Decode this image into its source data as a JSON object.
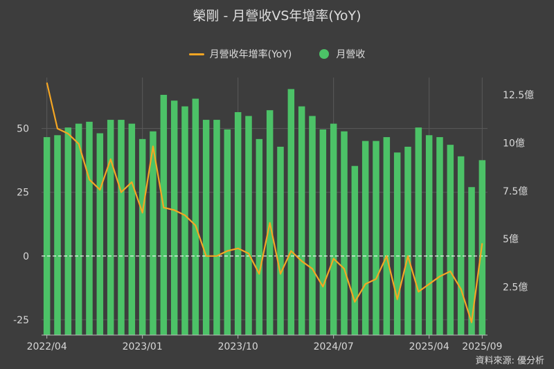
{
  "title": "榮剛 - 月營收VS年增率(YoY)",
  "legend": {
    "line_label": "月營收年增率(YoY)",
    "bar_label": "月營收"
  },
  "source": "資料來源: 優分析",
  "colors": {
    "background": "#3d3d3d",
    "bar": "#4cc267",
    "line": "#f5a623",
    "zero_line": "#ffffff",
    "grid": "#5a5a5a"
  },
  "chart_data": {
    "type": "bar+line",
    "categories": [
      "2022/04",
      "2022/05",
      "2022/06",
      "2022/07",
      "2022/08",
      "2022/09",
      "2022/10",
      "2022/11",
      "2022/12",
      "2023/01",
      "2023/02",
      "2023/03",
      "2023/04",
      "2023/05",
      "2023/06",
      "2023/07",
      "2023/08",
      "2023/09",
      "2023/10",
      "2023/11",
      "2023/12",
      "2024/01",
      "2024/02",
      "2024/03",
      "2024/04",
      "2024/05",
      "2024/06",
      "2024/07",
      "2024/08",
      "2024/09",
      "2024/10",
      "2024/11",
      "2024/12",
      "2025/01",
      "2025/02",
      "2025/03",
      "2025/04",
      "2025/05",
      "2025/06",
      "2025/07",
      "2025/08",
      "2025/09"
    ],
    "x_tick_labels": [
      "2022/04",
      "2023/01",
      "2023/10",
      "2024/07",
      "2025/04",
      "2025/09"
    ],
    "series": [
      {
        "name": "月營收",
        "type": "bar",
        "axis": "right",
        "unit": "億",
        "values": [
          10.3,
          10.4,
          10.8,
          11.0,
          11.1,
          10.5,
          11.2,
          11.2,
          11.0,
          10.2,
          10.6,
          12.5,
          12.2,
          11.9,
          12.3,
          11.2,
          11.2,
          10.7,
          11.6,
          11.4,
          10.2,
          11.7,
          9.8,
          12.8,
          11.9,
          11.4,
          10.7,
          11.0,
          10.6,
          8.8,
          10.1,
          10.1,
          10.3,
          9.5,
          9.8,
          10.8,
          10.4,
          10.3,
          9.9,
          9.3,
          7.7,
          9.1
        ]
      },
      {
        "name": "月營收年增率(YoY)",
        "type": "line",
        "axis": "left",
        "values": [
          68,
          50,
          48,
          44,
          30,
          26,
          38,
          25,
          29,
          17,
          43,
          19,
          18,
          16,
          12,
          0,
          0,
          2,
          3,
          1,
          -7,
          13,
          -7,
          2,
          -2,
          -5,
          -12,
          -1,
          -5,
          -18,
          -11,
          -9,
          0,
          -17,
          0,
          -14,
          -11,
          -8,
          -6,
          -13,
          -26,
          5
        ]
      }
    ],
    "y_left": {
      "range": [
        -31,
        70
      ],
      "ticks": [
        -25,
        0,
        25,
        50
      ]
    },
    "y_right": {
      "range": [
        0,
        13.4
      ],
      "ticks": [
        2.5,
        5,
        7.5,
        10,
        12.5
      ],
      "tick_labels": [
        "2.5億",
        "5億",
        "7.5億",
        "10億",
        "12.5億"
      ]
    },
    "grid": true,
    "legend_position": "top-center"
  }
}
